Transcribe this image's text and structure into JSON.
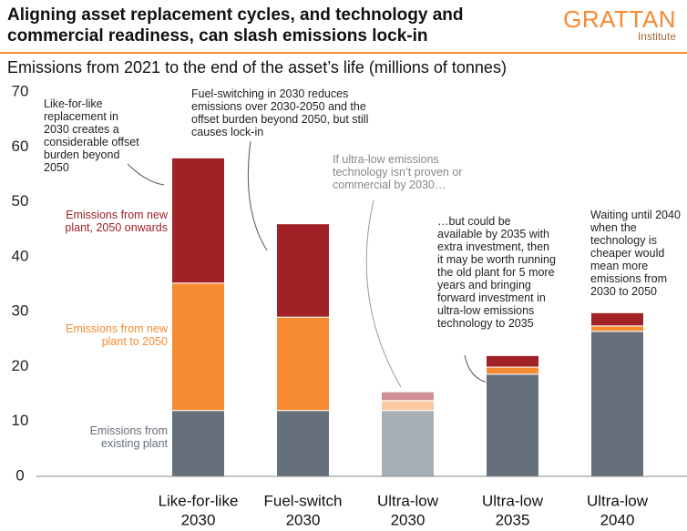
{
  "header": {
    "title": "Aligning asset replacement cycles, and technology and commercial readiness, can slash emissions lock-in",
    "logo": "GRATTAN",
    "logo_sub": "Institute"
  },
  "chart_data": {
    "type": "stacked-bar",
    "title": "Emissions from 2021 to the end of the asset’s life (millions of tonnes)",
    "categories": [
      [
        "Like-for-like",
        "2030"
      ],
      [
        "Fuel-switch",
        "2030"
      ],
      [
        "Ultra-low",
        "2030"
      ],
      [
        "Ultra-low",
        "2035"
      ],
      [
        "Ultra-low",
        "2040"
      ]
    ],
    "series": [
      {
        "name": "Emissions from existing plant",
        "color": "#66707a",
        "colors": [
          "#66707a",
          "#66707a",
          "#a8b0b6",
          "#66707a",
          "#66707a"
        ],
        "values": [
          12,
          12,
          12,
          18.6,
          26.4
        ]
      },
      {
        "name": "Emissions from new plant to 2050",
        "color": "#f68b33",
        "colors": [
          "#f68b33",
          "#f68b33",
          "#f9c9a0",
          "#f68b33",
          "#f68b33"
        ],
        "values": [
          23.2,
          17,
          1.8,
          1.3,
          1
        ]
      },
      {
        "name": "Emissions from new plant, 2050 onwards",
        "color": "#a02126",
        "colors": [
          "#a02126",
          "#a02126",
          "#d08f92",
          "#a02126",
          "#a02126"
        ],
        "values": [
          22.8,
          17,
          1.6,
          2.1,
          2.4
        ]
      }
    ],
    "ylim": [
      0,
      70
    ],
    "yticks": [
      0,
      10,
      20,
      30,
      40,
      50,
      60,
      70
    ],
    "grid": false,
    "annotations": [
      "Like-for-like replacement in 2030 creates a considerable offset burden beyond 2050",
      "Fuel-switching in 2030 reduces emissions over 2030-2050 and the offset burden beyond 2050, but still causes lock-in",
      "If ultra-low emissions technology isn’t proven or commercial by 2030…",
      "…but could be available by 2035 with extra investment, then it may be worth running the old plant for 5 more years and bringing forward investment in ultra-low emissions technology to 2035",
      "Waiting until 2040 when the technology is cheaper would mean more emissions from 2030 to 2050"
    ]
  }
}
